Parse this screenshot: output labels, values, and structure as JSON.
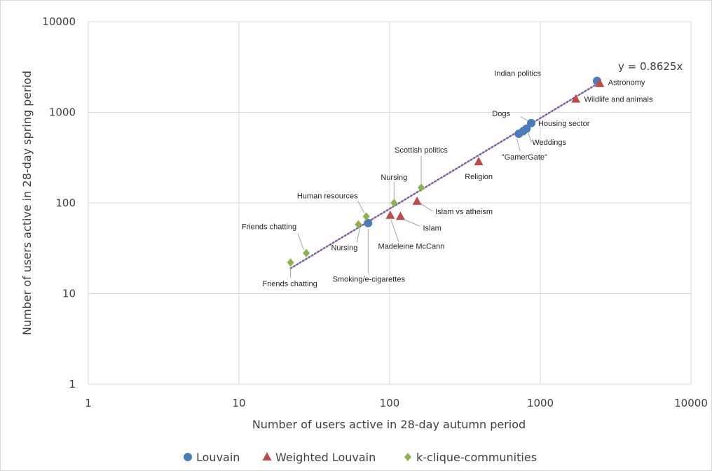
{
  "chart_data": {
    "type": "scatter",
    "title": "",
    "xlabel": "Number of users active in 28-day autumn period",
    "ylabel": "Number of users active in 28-day spring period",
    "x_scale": "log",
    "y_scale": "log",
    "xlim": [
      1,
      10000
    ],
    "ylim": [
      1,
      10000
    ],
    "x_ticks": [
      "1",
      "10",
      "100",
      "1000",
      "10000"
    ],
    "y_ticks": [
      "1",
      "10",
      "100",
      "1000",
      "10000"
    ],
    "grid": true,
    "legend_position": "bottom",
    "trendline": {
      "label": "y = 0.8625x",
      "slope": 0.8625,
      "x_range": [
        22,
        2500
      ],
      "color": "#7f5fa8"
    },
    "series": [
      {
        "name": "Louvain",
        "marker": "circle",
        "color": "#4a7ebb",
        "points": [
          {
            "x": 2380,
            "y": 2220
          },
          {
            "x": 870,
            "y": 760
          },
          {
            "x": 810,
            "y": 660
          },
          {
            "x": 770,
            "y": 620
          },
          {
            "x": 720,
            "y": 580
          },
          {
            "x": 72,
            "y": 60
          }
        ]
      },
      {
        "name": "Weighted Louvain",
        "marker": "triangle",
        "color": "#be4b48",
        "points": [
          {
            "x": 2480,
            "y": 2080
          },
          {
            "x": 1720,
            "y": 1400
          },
          {
            "x": 390,
            "y": 285
          },
          {
            "x": 152,
            "y": 104
          },
          {
            "x": 101,
            "y": 73
          },
          {
            "x": 118,
            "y": 71
          }
        ]
      },
      {
        "name": "k-clique-communities",
        "marker": "diamond",
        "color": "#8db34d",
        "points": [
          {
            "x": 162,
            "y": 148
          },
          {
            "x": 107,
            "y": 100
          },
          {
            "x": 70,
            "y": 71
          },
          {
            "x": 62,
            "y": 58
          },
          {
            "x": 28,
            "y": 28
          },
          {
            "x": 22,
            "y": 22
          }
        ]
      }
    ],
    "annotations": [
      {
        "text": "Indian politics",
        "x": 2380,
        "y": 2220,
        "anchor": "end"
      },
      {
        "text": "Astronomy",
        "x": 2480,
        "y": 2080,
        "anchor": "start"
      },
      {
        "text": "Wildlife and animals",
        "x": 1720,
        "y": 1400,
        "anchor": "start"
      },
      {
        "text": "Dogs",
        "x": 870,
        "y": 760,
        "anchor": "end"
      },
      {
        "text": "Housing sector",
        "x": 870,
        "y": 760,
        "anchor": "start"
      },
      {
        "text": "Weddings",
        "x": 810,
        "y": 660,
        "anchor": "start"
      },
      {
        "text": "\"GamerGate\"",
        "x": 720,
        "y": 580,
        "anchor": "middle"
      },
      {
        "text": "Scottish politics",
        "x": 162,
        "y": 148,
        "anchor": "middle"
      },
      {
        "text": "Religion",
        "x": 390,
        "y": 285,
        "anchor": "middle"
      },
      {
        "text": "Nursing",
        "x": 107,
        "y": 100,
        "anchor": "middle"
      },
      {
        "text": "Human resources",
        "x": 70,
        "y": 71,
        "anchor": "end"
      },
      {
        "text": "Islam vs atheism",
        "x": 152,
        "y": 104,
        "anchor": "start"
      },
      {
        "text": "Islam",
        "x": 118,
        "y": 71,
        "anchor": "start"
      },
      {
        "text": "Nursing",
        "x": 62,
        "y": 58,
        "anchor": "end"
      },
      {
        "text": "Madeleine McCann",
        "x": 101,
        "y": 73,
        "anchor": "middle"
      },
      {
        "text": "Friends chatting",
        "x": 28,
        "y": 28,
        "anchor": "end"
      },
      {
        "text": "Friends chatting",
        "x": 22,
        "y": 22,
        "anchor": "middle"
      },
      {
        "text": "Smoking/e-cigarettes",
        "x": 72,
        "y": 60,
        "anchor": "middle"
      }
    ]
  }
}
